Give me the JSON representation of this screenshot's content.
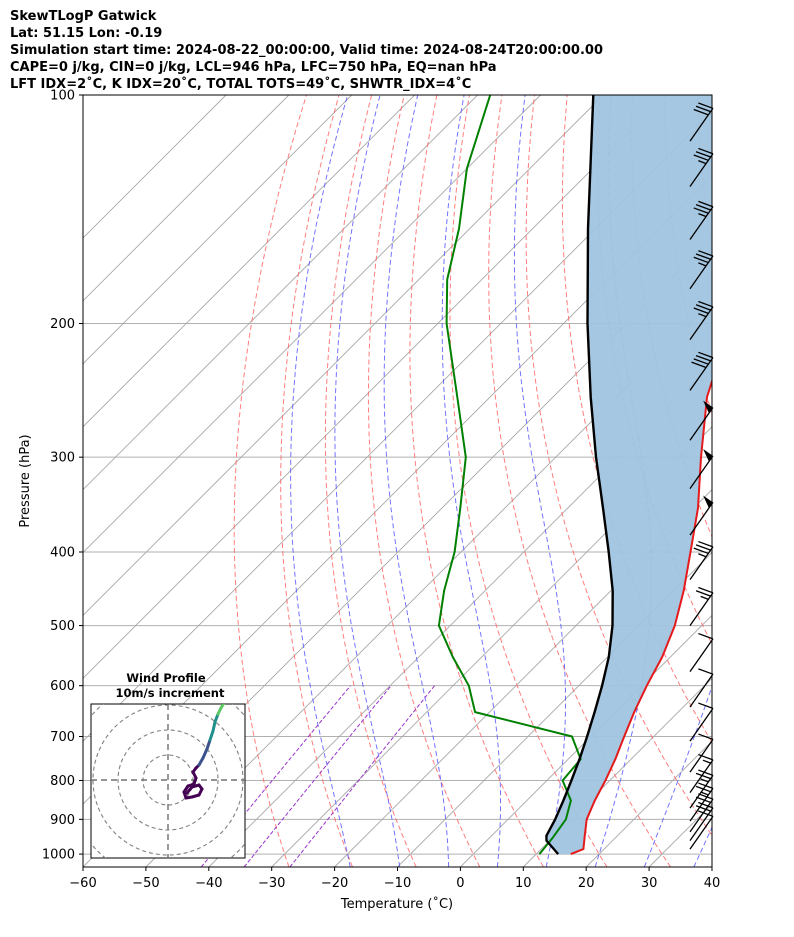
{
  "title_lines": [
    "SkewTLogP Gatwick",
    "Lat: 51.15   Lon: -0.19",
    "Simulation start time: 2024-08-22_00:00:00, Valid time: 2024-08-24T20:00:00.00",
    "CAPE=0 j/kg, CIN=0 j/kg, LCL=946 hPa, LFC=750 hPa, EQ=nan hPa",
    "LFT IDX=2˚C, K IDX=20˚C, TOTAL TOTS=49˚C, SHWTR_IDX=4˚C"
  ],
  "chart_data": {
    "type": "skew-t log-p",
    "xlabel": "Temperature (˚C)",
    "ylabel": "Pressure (hPa)",
    "xlim": [
      -60,
      40
    ],
    "ylim": [
      1040,
      100
    ],
    "x_ticks": [
      "−60",
      "−50",
      "−40",
      "−30",
      "−20",
      "−10",
      "0",
      "10",
      "20",
      "30",
      "40"
    ],
    "x_tick_values": [
      -60,
      -50,
      -40,
      -30,
      -20,
      -10,
      0,
      10,
      20,
      30,
      40
    ],
    "y_ticks": [
      "100",
      "200",
      "300",
      "400",
      "500",
      "600",
      "700",
      "800",
      "900",
      "1000"
    ],
    "y_tick_values": [
      100,
      200,
      300,
      400,
      500,
      600,
      700,
      800,
      900,
      1000
    ],
    "grid": true,
    "colors": {
      "temperature": "#e41a1c",
      "dewpoint": "#008000",
      "parcel": "#000000",
      "fill": "#a0c4df",
      "dry_adiabats": "#ff6666",
      "moist_adiabats": "#5a5aff",
      "mixing_ratio": "#9933cc",
      "isotherms": "#a8a8a8"
    },
    "series": [
      {
        "name": "Temperature",
        "points": [
          [
            1000,
            15.5
          ],
          [
            985,
            16.7
          ],
          [
            950,
            15.0
          ],
          [
            900,
            12.5
          ],
          [
            850,
            10.8
          ],
          [
            800,
            9.3
          ],
          [
            750,
            7.5
          ],
          [
            700,
            5.3
          ],
          [
            650,
            3.0
          ],
          [
            600,
            0.8
          ],
          [
            550,
            -1.3
          ],
          [
            500,
            -4.3
          ],
          [
            450,
            -8.4
          ],
          [
            400,
            -13.5
          ],
          [
            350,
            -19.3
          ],
          [
            300,
            -26.9
          ],
          [
            250,
            -35.5
          ],
          [
            200,
            -43.5
          ],
          [
            175,
            -47.8
          ],
          [
            150,
            -52.0
          ],
          [
            125,
            -57.0
          ],
          [
            100,
            -64.0
          ]
        ]
      },
      {
        "name": "Dewpoint",
        "points": [
          [
            1000,
            10.5
          ],
          [
            950,
            10.0
          ],
          [
            900,
            9.2
          ],
          [
            850,
            7.0
          ],
          [
            800,
            2.5
          ],
          [
            750,
            2.0
          ],
          [
            700,
            -3.0
          ],
          [
            650,
            -22.3
          ],
          [
            600,
            -27.5
          ],
          [
            550,
            -34.6
          ],
          [
            500,
            -41.8
          ],
          [
            450,
            -46.5
          ],
          [
            400,
            -51.0
          ],
          [
            350,
            -57.1
          ],
          [
            300,
            -64.3
          ],
          [
            250,
            -75.2
          ],
          [
            200,
            -88.6
          ],
          [
            175,
            -95.5
          ],
          [
            150,
            -101.7
          ],
          [
            125,
            -110.0
          ],
          [
            100,
            -118.0
          ]
        ]
      },
      {
        "name": "Parcel",
        "points": [
          [
            1000,
            13.5
          ],
          [
            960,
            9.5
          ],
          [
            946,
            8.7
          ],
          [
            900,
            7.5
          ],
          [
            850,
            5.8
          ],
          [
            800,
            3.9
          ],
          [
            750,
            1.8
          ],
          [
            700,
            -0.6
          ],
          [
            650,
            -3.3
          ],
          [
            600,
            -6.3
          ],
          [
            550,
            -9.8
          ],
          [
            500,
            -14.2
          ],
          [
            450,
            -19.7
          ],
          [
            400,
            -26.5
          ],
          [
            350,
            -34.4
          ],
          [
            300,
            -43.6
          ],
          [
            250,
            -54.0
          ],
          [
            200,
            -66.2
          ],
          [
            150,
            -81.2
          ],
          [
            100,
            -101.6
          ]
        ]
      }
    ],
    "wind_barbs": [
      {
        "p": 985,
        "kt": 10
      },
      {
        "p": 960,
        "kt": 20
      },
      {
        "p": 935,
        "kt": 20
      },
      {
        "p": 905,
        "kt": 25
      },
      {
        "p": 870,
        "kt": 25
      },
      {
        "p": 830,
        "kt": 15
      },
      {
        "p": 780,
        "kt": 10
      },
      {
        "p": 710,
        "kt": 10
      },
      {
        "p": 640,
        "kt": 10
      },
      {
        "p": 575,
        "kt": 10
      },
      {
        "p": 500,
        "kt": 25
      },
      {
        "p": 435,
        "kt": 35
      },
      {
        "p": 380,
        "kt": 50
      },
      {
        "p": 330,
        "kt": 50
      },
      {
        "p": 285,
        "kt": 50
      },
      {
        "p": 245,
        "kt": 40
      },
      {
        "p": 210,
        "kt": 35
      },
      {
        "p": 180,
        "kt": 35
      },
      {
        "p": 155,
        "kt": 35
      },
      {
        "p": 132,
        "kt": 35
      },
      {
        "p": 115,
        "kt": 30
      }
    ],
    "inset": {
      "title": "Wind Profile",
      "subtitle": "10m/s increment",
      "rings": 3,
      "colormap": [
        "#440154",
        "#3b528b",
        "#21908d",
        "#5dc863",
        "#fde725"
      ]
    }
  }
}
